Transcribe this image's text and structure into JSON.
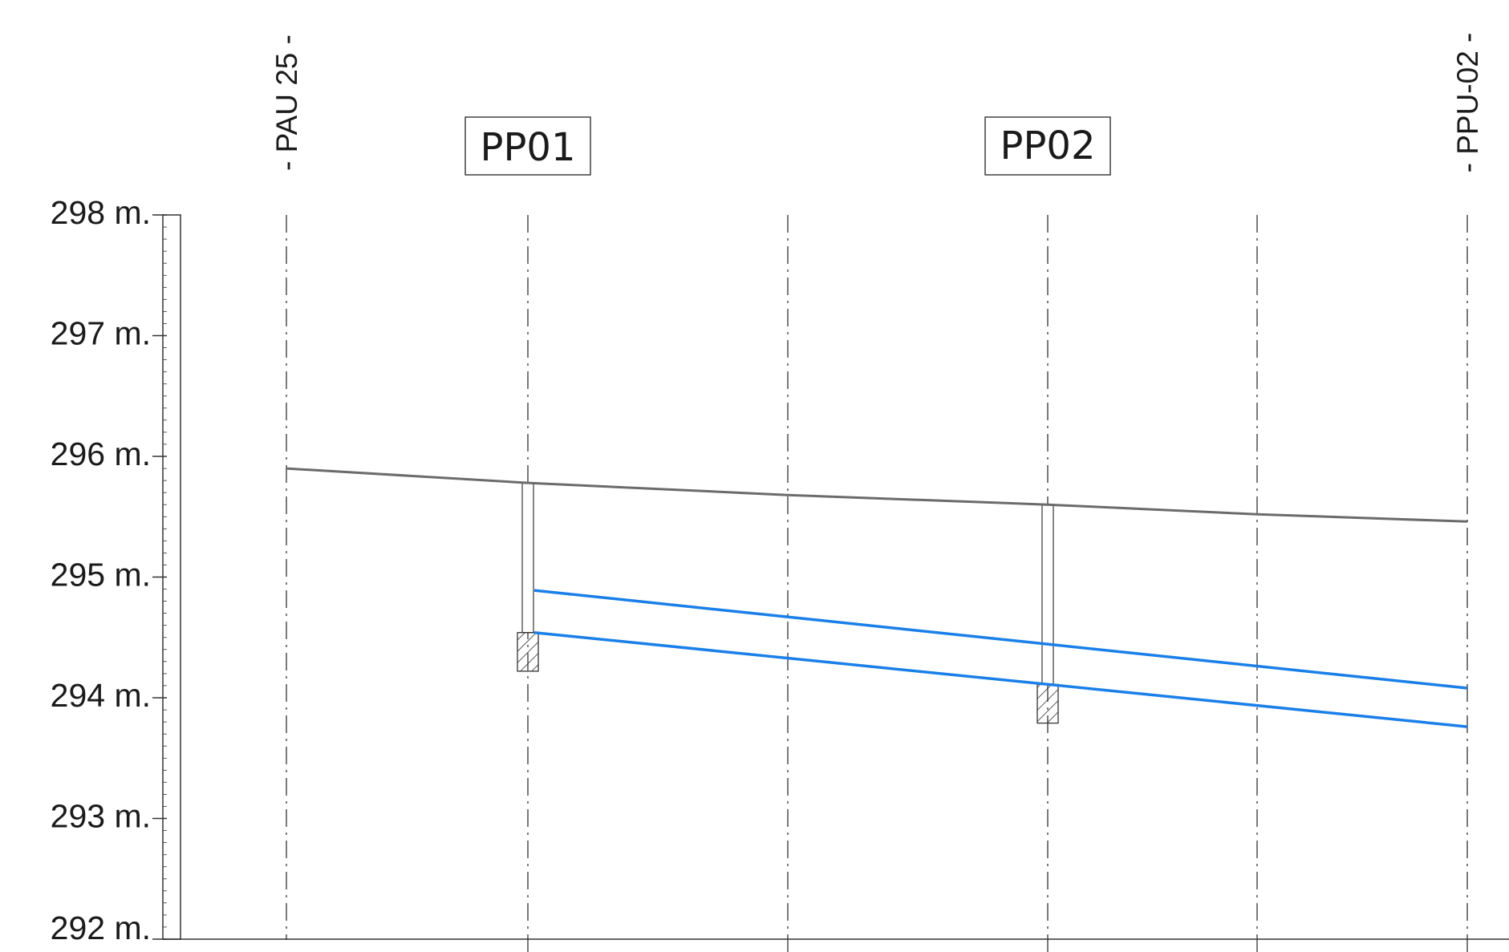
{
  "profile": {
    "elevation_axis": {
      "unit_suffix": "m.",
      "ticks": [
        "298 m.",
        "297 m.",
        "296 m.",
        "295 m.",
        "294 m.",
        "293 m.",
        "292 m."
      ],
      "range": [
        292,
        298
      ]
    },
    "stations": [
      {
        "key": "pau25",
        "label": "- PAU 25 -",
        "box_label": ""
      },
      {
        "key": "pp01",
        "label": "",
        "box_label": "PP01"
      },
      {
        "key": "mid1",
        "label": "",
        "box_label": ""
      },
      {
        "key": "pp02",
        "label": "",
        "box_label": "PP02"
      },
      {
        "key": "mid2",
        "label": "",
        "box_label": ""
      },
      {
        "key": "ppu02",
        "label": "- PPU-02 -",
        "box_label": ""
      }
    ],
    "ground_line": {
      "color": "#6b6b6b",
      "points": [
        {
          "station": "pau25",
          "elevation": 295.9
        },
        {
          "station": "pp01",
          "elevation": 295.78
        },
        {
          "station": "mid1",
          "elevation": 295.68
        },
        {
          "station": "pp02",
          "elevation": 295.6
        },
        {
          "station": "mid2",
          "elevation": 295.52
        },
        {
          "station": "ppu02",
          "elevation": 295.46
        }
      ]
    },
    "pipe": {
      "color": "#1a7fe8",
      "top": [
        {
          "station": "pp01",
          "elevation": 294.89
        },
        {
          "station": "ppu02",
          "elevation": 294.08
        }
      ],
      "bottom": [
        {
          "station": "pp01",
          "elevation": 294.54
        },
        {
          "station": "ppu02",
          "elevation": 293.76
        }
      ]
    },
    "manholes": [
      {
        "station": "pp01",
        "top_elevation": 295.78,
        "base_top": 294.54,
        "base_bottom": 294.22
      },
      {
        "station": "pp02",
        "top_elevation": 295.6,
        "base_top": 294.11,
        "base_bottom": 293.79
      }
    ]
  }
}
